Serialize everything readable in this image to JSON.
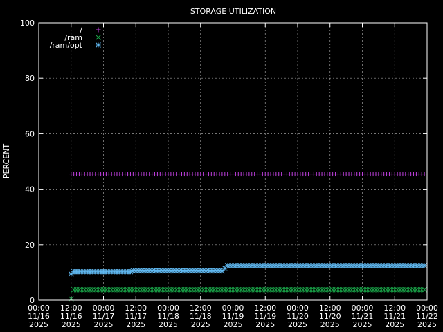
{
  "chart_data": {
    "type": "scatter",
    "title": "STORAGE UTILIZATION",
    "ylabel": "PERCENT",
    "xlabel": "",
    "ylim": [
      0,
      100
    ],
    "yticks": [
      "0",
      "20",
      "40",
      "60",
      "80",
      "100"
    ],
    "xticks": [
      [
        "00:00",
        "11/16",
        "2025"
      ],
      [
        "12:00",
        "11/16",
        "2025"
      ],
      [
        "00:00",
        "11/17",
        "2025"
      ],
      [
        "12:00",
        "11/17",
        "2025"
      ],
      [
        "00:00",
        "11/18",
        "2025"
      ],
      [
        "12:00",
        "11/18",
        "2025"
      ],
      [
        "00:00",
        "11/19",
        "2025"
      ],
      [
        "12:00",
        "11/19",
        "2025"
      ],
      [
        "00:00",
        "11/20",
        "2025"
      ],
      [
        "12:00",
        "11/20",
        "2025"
      ],
      [
        "00:00",
        "11/21",
        "2025"
      ],
      [
        "12:00",
        "11/21",
        "2025"
      ],
      [
        "00:00",
        "11/22",
        "2025"
      ]
    ],
    "grid": true,
    "legend_position": "top-left",
    "series": [
      {
        "name": "/",
        "marker": "plus",
        "color": "#c040e0",
        "segments": [
          {
            "from": "2025-11-16 12:00",
            "to": "2025-11-21 23:00",
            "value": 45.5
          }
        ]
      },
      {
        "name": "/ram",
        "marker": "cross",
        "color": "#1aa84a",
        "segments": [
          {
            "from": "2025-11-16 12:00",
            "to": "2025-11-16 12:00",
            "value": 0.5
          },
          {
            "from": "2025-11-16 13:00",
            "to": "2025-11-21 23:00",
            "value": 3.8
          }
        ]
      },
      {
        "name": "/ram/opt",
        "marker": "star",
        "color": "#60b8f0",
        "segments": [
          {
            "from": "2025-11-16 12:00",
            "to": "2025-11-16 12:00",
            "value": 9.5
          },
          {
            "from": "2025-11-16 13:00",
            "to": "2025-11-17 10:00",
            "value": 10.3
          },
          {
            "from": "2025-11-17 11:00",
            "to": "2025-11-18 20:00",
            "value": 10.6
          },
          {
            "from": "2025-11-18 21:00",
            "to": "2025-11-18 21:00",
            "value": 11.5
          },
          {
            "from": "2025-11-18 22:00",
            "to": "2025-11-21 23:00",
            "value": 12.5
          }
        ]
      }
    ]
  }
}
